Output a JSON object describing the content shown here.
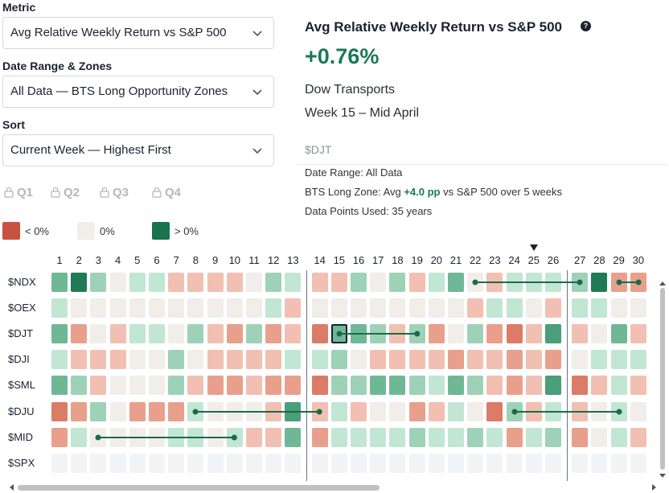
{
  "filters": {
    "metric_label": "Metric",
    "metric_value": "Avg Relative Weekly Return vs S&P 500",
    "date_label": "Date Range & Zones",
    "date_value": "All Data — BTS Long Opportunity Zones",
    "sort_label": "Sort",
    "sort_value": "Current Week — Highest First"
  },
  "quarters": [
    "Q1",
    "Q2",
    "Q3",
    "Q4"
  ],
  "legend": {
    "neg": "< 0%",
    "zero": "0%",
    "pos": "> 0%"
  },
  "panel": {
    "title": "Avg Relative Weekly Return vs S&P 500",
    "help": "?",
    "value": "+0.76%",
    "name": "Dow Transports",
    "week": "Week 15 – Mid April",
    "ticker": "$DJT",
    "date_range": "Date Range: All Data",
    "zone_prefix": "BTS Long Zone: Avg ",
    "zone_value": "+4.0 pp",
    "zone_suffix": " vs S&P 500 over 5 weeks",
    "data_points": "Data Points Used: 35 years"
  },
  "heatmap": {
    "weeks": [
      1,
      2,
      3,
      4,
      5,
      6,
      7,
      8,
      9,
      10,
      11,
      12,
      13,
      14,
      15,
      16,
      17,
      18,
      19,
      20,
      21,
      22,
      23,
      24,
      25,
      26,
      27,
      28,
      29,
      30
    ],
    "current_week": 25,
    "rows": [
      {
        "ticker": "$NDX",
        "values": [
          3,
          5,
          2,
          0,
          1,
          1,
          -1,
          -1,
          -1,
          -1,
          0,
          2,
          1,
          -1,
          -1,
          2,
          0,
          2,
          -1,
          1,
          3,
          0,
          -1,
          1,
          1,
          1,
          2,
          5,
          -2,
          -2
        ]
      },
      {
        "ticker": "$OEX",
        "values": [
          1,
          0,
          0,
          0,
          0,
          0,
          0,
          0,
          0,
          0,
          0,
          1,
          -1,
          0,
          0,
          0,
          0,
          0,
          0,
          0,
          0,
          -1,
          1,
          1,
          0,
          -1,
          1,
          1,
          0,
          0
        ]
      },
      {
        "ticker": "$DJT",
        "values": [
          3,
          -2,
          0,
          -1,
          1,
          1,
          0,
          2,
          -1,
          -2,
          2,
          -2,
          -1,
          -3,
          3,
          3,
          2,
          -1,
          2,
          -2,
          0,
          2,
          -2,
          -3,
          -1,
          4,
          -1,
          0,
          3,
          -1
        ]
      },
      {
        "ticker": "$DJI",
        "values": [
          1,
          -1,
          -1,
          -1,
          0,
          0,
          2,
          0,
          -1,
          -1,
          -1,
          -1,
          1,
          1,
          2,
          0,
          -1,
          -1,
          -1,
          -1,
          -2,
          -1,
          -1,
          -2,
          -1,
          -2,
          0,
          1,
          1,
          1
        ]
      },
      {
        "ticker": "$SML",
        "values": [
          3,
          2,
          -1,
          0,
          0,
          0,
          2,
          -1,
          -2,
          -2,
          -1,
          -2,
          -2,
          -3,
          2,
          2,
          3,
          3,
          2,
          1,
          3,
          2,
          -1,
          -2,
          -1,
          4,
          -3,
          -1,
          1,
          -1
        ]
      },
      {
        "ticker": "$DJU",
        "values": [
          -3,
          -2,
          2,
          0,
          -2,
          -2,
          -2,
          1,
          0,
          0,
          0,
          -1,
          4,
          -1,
          1,
          -1,
          0,
          0,
          -2,
          -1,
          1,
          0,
          -3,
          2,
          -1,
          1,
          -1,
          0,
          1,
          0
        ]
      },
      {
        "ticker": "$MID",
        "values": [
          -2,
          1,
          0,
          0,
          0,
          0,
          1,
          1,
          0,
          1,
          -1,
          -1,
          3,
          -2,
          1,
          1,
          1,
          1,
          2,
          1,
          1,
          2,
          1,
          -2,
          1,
          2,
          -2,
          0,
          1,
          -1
        ]
      },
      {
        "ticker": "$SPX",
        "values": [
          null,
          null,
          null,
          null,
          null,
          null,
          null,
          null,
          null,
          null,
          null,
          null,
          null,
          null,
          null,
          null,
          null,
          null,
          null,
          null,
          null,
          null,
          null,
          null,
          null,
          null,
          null,
          null,
          null,
          null
        ]
      }
    ],
    "zones": [
      {
        "ticker": "$NDX",
        "from_week": 22,
        "to_week": 27
      },
      {
        "ticker": "$NDX",
        "from_week": 29,
        "to_week": 30
      },
      {
        "ticker": "$DJT",
        "from_week": 15,
        "to_week": 19
      },
      {
        "ticker": "$DJU",
        "from_week": 8,
        "to_week": 14
      },
      {
        "ticker": "$DJU",
        "from_week": 24,
        "to_week": 29
      },
      {
        "ticker": "$MID",
        "from_week": 3,
        "to_week": 10
      }
    ],
    "selected": {
      "ticker": "$DJT",
      "week": 15
    }
  },
  "colors": {
    "pos": [
      "#c2e6d4",
      "#9ed2b8",
      "#6fb896",
      "#4a9e7a",
      "#1f7a57"
    ],
    "neg": [
      "#f1c0b2",
      "#e8a08c",
      "#dc7c66",
      "#cc5844"
    ],
    "zero": "#f1eeea",
    "empty": "#f1f4f7",
    "zone_line": "#1a6b4c",
    "accent": "#1a7a55"
  }
}
